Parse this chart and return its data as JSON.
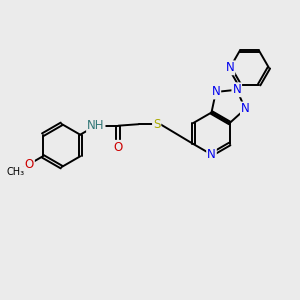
{
  "background_color": "#ebebeb",
  "atom_colors": {
    "C": "#000000",
    "N": "#0000ee",
    "O": "#cc0000",
    "S": "#aaaa00",
    "H": "#337777"
  },
  "bond_color": "#000000",
  "bond_width": 1.4,
  "font_size_atom": 8.5,
  "figsize": [
    3.0,
    3.0
  ],
  "dpi": 100
}
